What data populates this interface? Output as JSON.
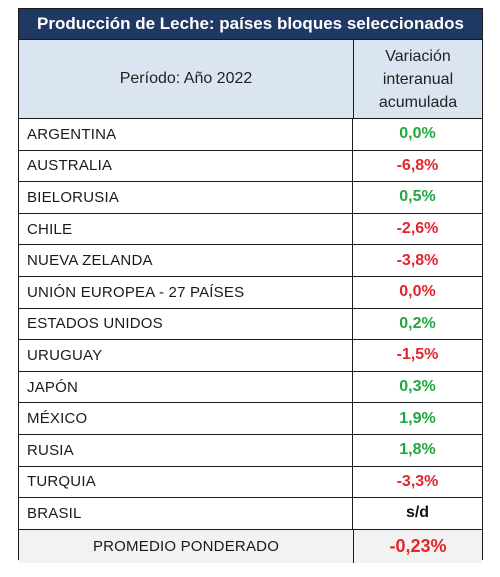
{
  "title": "Producción de Leche: países bloques seleccionados",
  "header": {
    "period": "Período: Año 2022",
    "variation_line1": "Variación",
    "variation_line2": "interanual",
    "variation_line3": "acumulada"
  },
  "rows": [
    {
      "country": "ARGENTINA",
      "value": "0,0%",
      "tone": "pos"
    },
    {
      "country": "AUSTRALIA",
      "value": "-6,8%",
      "tone": "neg"
    },
    {
      "country": "BIELORUSIA",
      "value": "0,5%",
      "tone": "pos"
    },
    {
      "country": "CHILE",
      "value": "-2,6%",
      "tone": "neg"
    },
    {
      "country": "NUEVA ZELANDA",
      "value": "-3,8%",
      "tone": "neg"
    },
    {
      "country": "UNIÓN EUROPEA - 27 PAÍSES",
      "value": "0,0%",
      "tone": "neg"
    },
    {
      "country": "ESTADOS UNIDOS",
      "value": "0,2%",
      "tone": "pos"
    },
    {
      "country": "URUGUAY",
      "value": "-1,5%",
      "tone": "neg"
    },
    {
      "country": "JAPÓN",
      "value": "0,3%",
      "tone": "pos"
    },
    {
      "country": "MÉXICO",
      "value": "1,9%",
      "tone": "pos"
    },
    {
      "country": "RUSIA",
      "value": "1,8%",
      "tone": "pos"
    },
    {
      "country": "TURQUIA",
      "value": "-3,3%",
      "tone": "neg"
    },
    {
      "country": "BRASIL",
      "value": "s/d",
      "tone": "neutral"
    }
  ],
  "footer": {
    "label": "PROMEDIO PONDERADO",
    "value": "-0,23%",
    "tone": "neg"
  },
  "colors": {
    "title_bg": "#1f3864",
    "header_bg": "#dbe5f1",
    "positive": "#21a73f",
    "negative": "#e3262b",
    "footer_bg": "#f2f2f2"
  }
}
